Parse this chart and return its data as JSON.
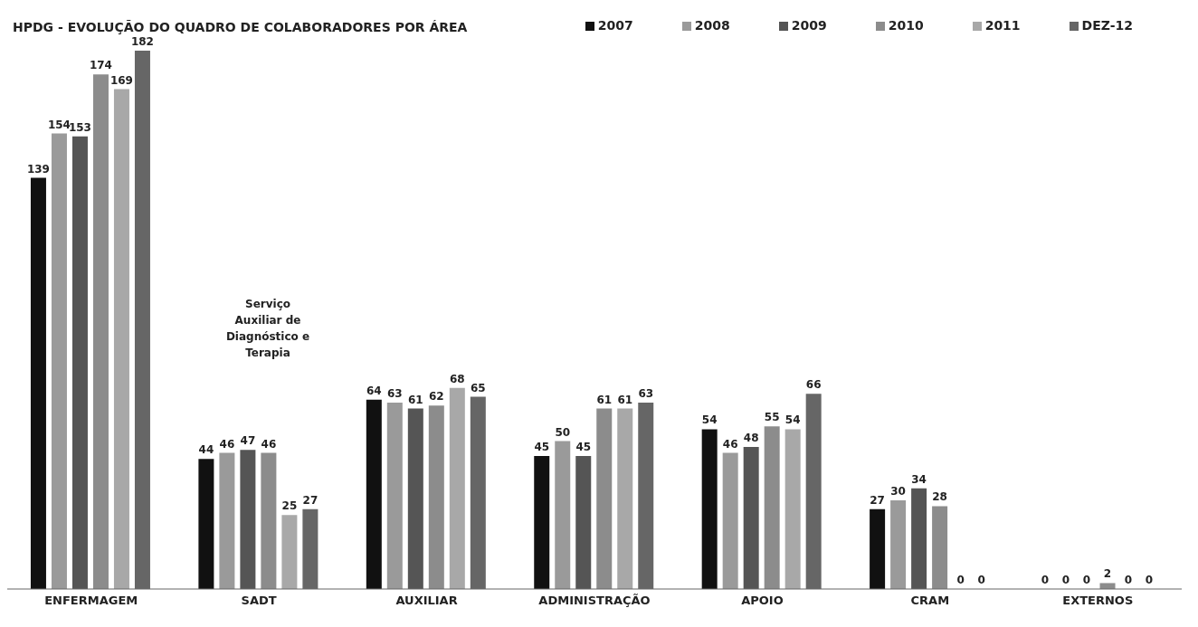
{
  "chart_data": {
    "type": "bar",
    "title": "HPDG - EVOLUÇÃO DO QUADRO DE COLABORADORES POR ÁREA",
    "categories": [
      "ENFERMAGEM",
      "SADT",
      "AUXILIAR",
      "ADMINISTRAÇÃO",
      "APOIO",
      "CRAM",
      "EXTERNOS"
    ],
    "series": [
      {
        "name": "2007",
        "color": "#111111",
        "values": [
          139,
          44,
          64,
          45,
          54,
          27,
          0
        ]
      },
      {
        "name": "2008",
        "color": "#9a9a9a",
        "values": [
          154,
          46,
          63,
          50,
          46,
          30,
          0
        ]
      },
      {
        "name": "2009",
        "color": "#555555",
        "values": [
          153,
          47,
          61,
          45,
          48,
          34,
          0
        ]
      },
      {
        "name": "2010",
        "color": "#8c8c8c",
        "values": [
          174,
          46,
          62,
          61,
          55,
          28,
          2
        ]
      },
      {
        "name": "2011",
        "color": "#a8a8a8",
        "values": [
          169,
          25,
          68,
          61,
          54,
          0,
          0
        ]
      },
      {
        "name": "DEZ-12",
        "color": "#666666",
        "values": [
          182,
          27,
          65,
          63,
          66,
          0,
          0
        ]
      }
    ],
    "data_labels": true,
    "legend": "top right",
    "annotations": [
      "Serviço Auxiliar de Diagnóstico e Terapia"
    ]
  }
}
